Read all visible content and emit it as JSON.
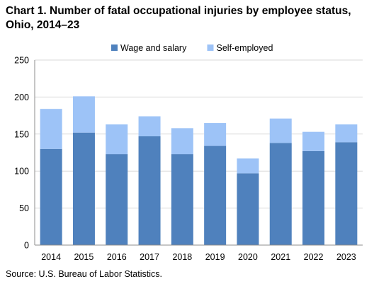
{
  "chart_data": {
    "type": "bar",
    "stacked": true,
    "title": "Chart 1. Number of fatal occupational injuries by employee status, Ohio, 2014–23",
    "xlabel": "",
    "ylabel": "",
    "categories": [
      "2014",
      "2015",
      "2016",
      "2017",
      "2018",
      "2019",
      "2020",
      "2021",
      "2022",
      "2023"
    ],
    "series": [
      {
        "name": "Wage and salary",
        "values": [
          130,
          152,
          123,
          147,
          123,
          134,
          97,
          138,
          127,
          139
        ],
        "color": "#4F81BD"
      },
      {
        "name": "Self-employed",
        "values": [
          54,
          49,
          40,
          27,
          35,
          31,
          20,
          33,
          26,
          24
        ],
        "color": "#9DC3F7"
      }
    ],
    "ylim": [
      0,
      250
    ],
    "yticks": [
      "0",
      "50",
      "100",
      "150",
      "200",
      "250"
    ],
    "grid": true,
    "legend_position": "top-center"
  },
  "source": "Source: U.S. Bureau  of Labor Statistics."
}
